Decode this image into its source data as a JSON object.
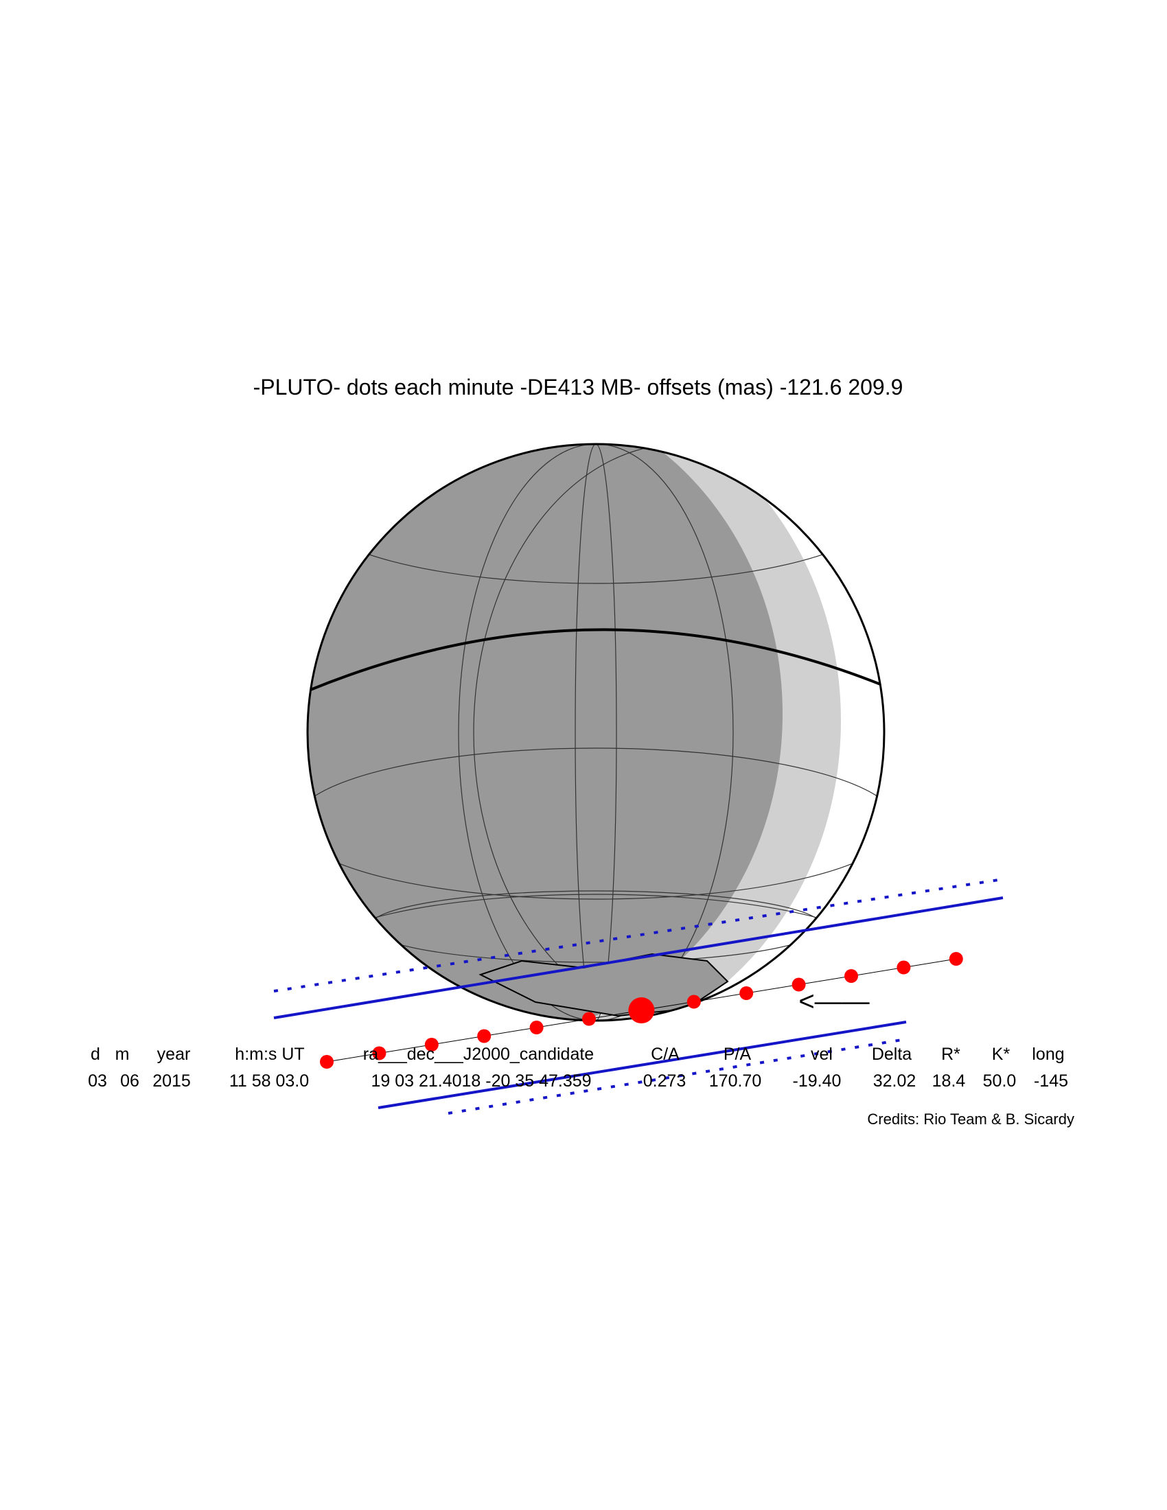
{
  "title": "-PLUTO- dots each minute -DE413 MB- offsets (mas) -121.6  209.9",
  "direction_arrow": "<——",
  "table": {
    "headers": [
      "d",
      "m",
      "year",
      "h:m:s UT",
      "ra___dec___J2000_candidate",
      "C/A",
      "P/A",
      "vel",
      "Delta",
      "R*",
      "K*",
      "long"
    ],
    "values": [
      "03",
      "06",
      "2015",
      "11 58 03.0",
      "19 03 21.4018 -20 35 47.359",
      "0.273",
      "170.70",
      "-19.40",
      "32.02",
      "18.4",
      "50.0",
      "-145"
    ]
  },
  "credits": "Credits: Rio Team & B. Sicardy"
}
